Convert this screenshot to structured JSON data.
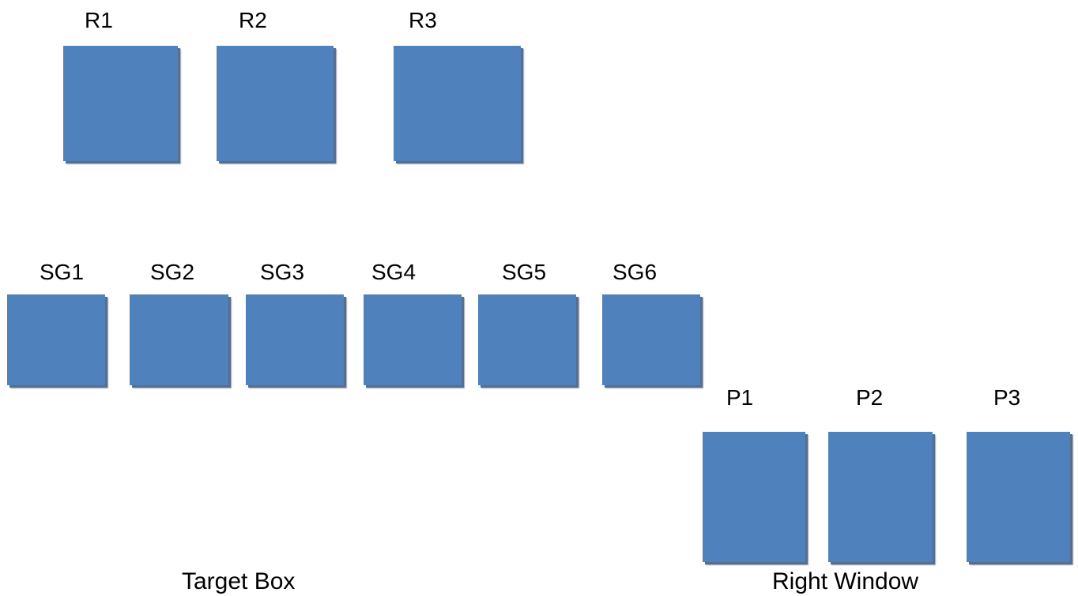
{
  "box_color": "#4f81bd",
  "shadow_color": "#5a6d8a",
  "groups": {
    "r": {
      "labels": [
        "R1",
        "R2",
        "R3"
      ]
    },
    "sg": {
      "labels": [
        "SG1",
        "SG2",
        "SG3",
        "SG4",
        "SG5",
        "SG6"
      ]
    },
    "p": {
      "labels": [
        "P1",
        "P2",
        "P3"
      ]
    }
  },
  "captions": {
    "left": "Target Box",
    "right": "Right Window"
  }
}
